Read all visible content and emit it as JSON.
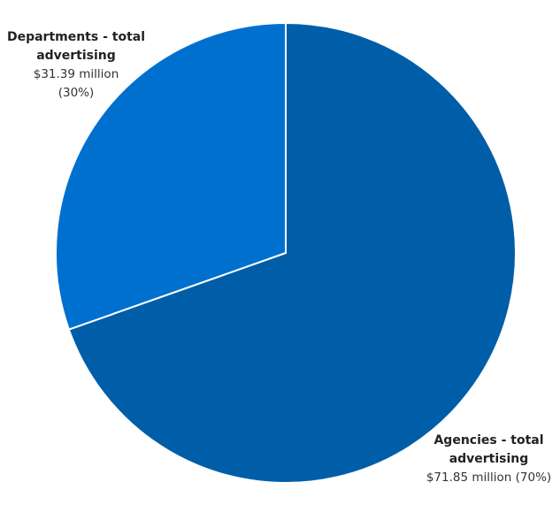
{
  "chart_data": {
    "type": "pie",
    "categories": [
      "Departments - total advertising",
      "Agencies - total advertising"
    ],
    "values": [
      31.39,
      71.85
    ],
    "value_labels": [
      "$31.39 million",
      "$71.85 million"
    ],
    "percents": [
      30,
      70
    ],
    "percent_labels": [
      "(30%)",
      "(70%)"
    ],
    "colors": [
      "#0070cf",
      "#005ea8"
    ]
  }
}
